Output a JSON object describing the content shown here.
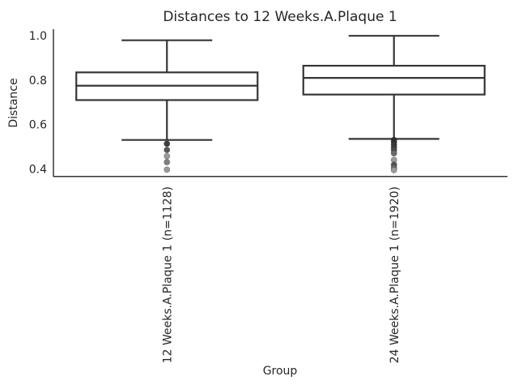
{
  "chart_data": {
    "type": "box",
    "title": "Distances to 12 Weeks.A.Plaque 1",
    "xlabel": "Group",
    "ylabel": "Distance",
    "ylim": [
      0.368,
      1.03
    ],
    "yticks": [
      0.4,
      0.6,
      0.8,
      1.0
    ],
    "grid": false,
    "legend_position": "none",
    "categories": [
      "12 Weeks.A.Plaque 1 (n=1128)",
      "24 Weeks.A.Plaque 1 (n=1920)"
    ],
    "series": [
      {
        "name": "12 Weeks.A.Plaque 1",
        "n": 1128,
        "whisker_high": 0.98,
        "q3": 0.835,
        "median": 0.775,
        "q1": 0.71,
        "whisker_low": 0.53,
        "outliers": [
          {
            "value": 0.513,
            "color": "#3c3c3c"
          },
          {
            "value": 0.485,
            "color": "#585858"
          },
          {
            "value": 0.457,
            "color": "#9a9a9a"
          },
          {
            "value": 0.43,
            "color": "#7f7f7f"
          },
          {
            "value": 0.396,
            "color": "#9a9a9a"
          }
        ]
      },
      {
        "name": "24 Weeks.A.Plaque 1",
        "n": 1920,
        "whisker_high": 1.0,
        "q3": 0.865,
        "median": 0.81,
        "q1": 0.735,
        "whisker_low": 0.535,
        "outliers": [
          {
            "value": 0.53,
            "color": "#2f2f2f"
          },
          {
            "value": 0.52,
            "color": "#2f2f2f"
          },
          {
            "value": 0.508,
            "color": "#3a3a3a"
          },
          {
            "value": 0.496,
            "color": "#3a3a3a"
          },
          {
            "value": 0.484,
            "color": "#4a4a4a"
          },
          {
            "value": 0.47,
            "color": "#6a6a6a"
          },
          {
            "value": 0.44,
            "color": "#9a9a9a"
          },
          {
            "value": 0.418,
            "color": "#555555"
          },
          {
            "value": 0.404,
            "color": "#6a6a6a"
          },
          {
            "value": 0.394,
            "color": "#9a9a9a"
          }
        ]
      }
    ],
    "colors": {
      "line": "#363636",
      "text": "#262626",
      "box_fill": "#ffffff",
      "background": "#ffffff"
    }
  }
}
